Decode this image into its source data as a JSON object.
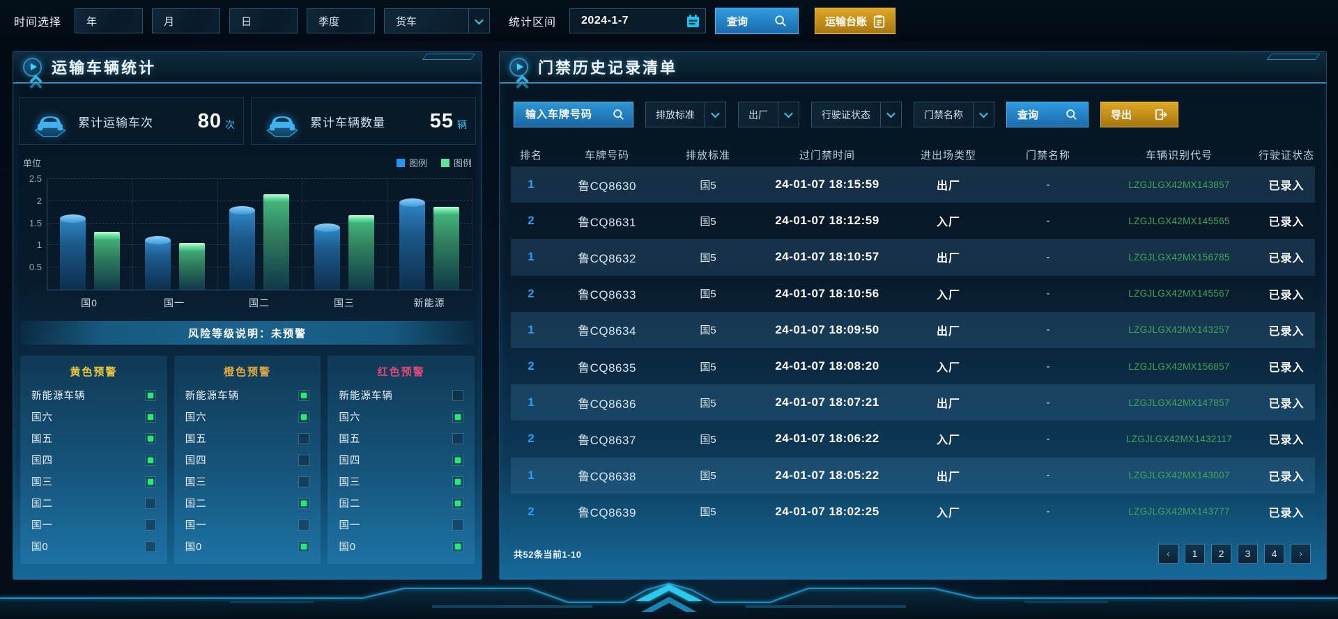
{
  "topbar": {
    "time_label": "时间选择",
    "period_buttons": [
      "年",
      "月",
      "日",
      "季度"
    ],
    "vehicle_type_selected": "货车",
    "range_label": "统计区间",
    "date_value": "2024-1-7",
    "query_label": "查询",
    "ledger_label": "运输台账"
  },
  "left_panel": {
    "title": "运输车辆统计",
    "stats": [
      {
        "label": "累计运输车次",
        "value": "80",
        "unit": "次"
      },
      {
        "label": "累计车辆数量",
        "value": "55",
        "unit": "辆"
      }
    ],
    "risk_banner": "风险等级说明：未预警",
    "warning_columns": [
      {
        "title": "黄色预警",
        "color": "#e8c63e",
        "items": [
          {
            "label": "新能源车辆",
            "checked": true
          },
          {
            "label": "国六",
            "checked": true
          },
          {
            "label": "国五",
            "checked": true
          },
          {
            "label": "国四",
            "checked": true
          },
          {
            "label": "国三",
            "checked": true
          },
          {
            "label": "国二",
            "checked": false
          },
          {
            "label": "国一",
            "checked": false
          },
          {
            "label": "国0",
            "checked": false
          }
        ]
      },
      {
        "title": "橙色预警",
        "color": "#e2a93c",
        "items": [
          {
            "label": "新能源车辆",
            "checked": true
          },
          {
            "label": "国六",
            "checked": true
          },
          {
            "label": "国五",
            "checked": false
          },
          {
            "label": "国四",
            "checked": false
          },
          {
            "label": "国三",
            "checked": false
          },
          {
            "label": "国二",
            "checked": true
          },
          {
            "label": "国一",
            "checked": false
          },
          {
            "label": "国0",
            "checked": true
          }
        ]
      },
      {
        "title": "红色预警",
        "color": "#e04878",
        "items": [
          {
            "label": "新能源车辆",
            "checked": false
          },
          {
            "label": "国六",
            "checked": true
          },
          {
            "label": "国五",
            "checked": false
          },
          {
            "label": "国四",
            "checked": true
          },
          {
            "label": "国三",
            "checked": true
          },
          {
            "label": "国二",
            "checked": true
          },
          {
            "label": "国一",
            "checked": false
          },
          {
            "label": "国0",
            "checked": true
          }
        ]
      }
    ]
  },
  "chart_data": {
    "type": "bar",
    "title": "",
    "unit_label": "单位",
    "categories": [
      "国0",
      "国一",
      "国二",
      "国三",
      "新能源"
    ],
    "series": [
      {
        "name": "图例",
        "color": "#2196f3",
        "values": [
          1.6,
          1.12,
          1.8,
          1.4,
          1.97
        ]
      },
      {
        "name": "图例",
        "color": "#5ce39a",
        "values": [
          1.22,
          0.97,
          2.07,
          1.6,
          1.8
        ]
      }
    ],
    "yticks": [
      "0.5",
      "1",
      "1.5",
      "2",
      "2.5"
    ],
    "ylim": [
      0,
      2.5
    ],
    "grid": true,
    "legend_position": "top-right"
  },
  "right_panel": {
    "title": "门禁历史记录清单",
    "filters": {
      "plate_placeholder": "输入车牌号码",
      "selects": [
        "排放标准",
        "出厂",
        "行驶证状态",
        "门禁名称"
      ],
      "query_label": "查询",
      "export_label": "导出"
    },
    "table": {
      "headers": [
        "排名",
        "车牌号码",
        "排放标准",
        "过门禁时间",
        "进出场类型",
        "门禁名称",
        "车辆识别代号",
        "行驶证状态"
      ],
      "rows": [
        {
          "highlight": true,
          "cells": [
            "1",
            "鲁CQ8630",
            "国5",
            "24-01-07 18:15:59",
            "出厂",
            "-",
            "LZGJLGX42MX143857",
            "已录入"
          ]
        },
        {
          "highlight": false,
          "cells": [
            "2",
            "鲁CQ8631",
            "国5",
            "24-01-07 18:12:59",
            "入厂",
            "-",
            "LZGJLGX42MX145565",
            "已录入"
          ]
        },
        {
          "highlight": true,
          "cells": [
            "1",
            "鲁CQ8632",
            "国5",
            "24-01-07 18:10:57",
            "出厂",
            "-",
            "LZGJLGX42MX156785",
            "已录入"
          ]
        },
        {
          "highlight": false,
          "cells": [
            "2",
            "鲁CQ8633",
            "国5",
            "24-01-07 18:10:56",
            "入厂",
            "-",
            "LZGJLGX42MX145567",
            "已录入"
          ]
        },
        {
          "highlight": true,
          "cells": [
            "1",
            "鲁CQ8634",
            "国5",
            "24-01-07 18:09:50",
            "出厂",
            "-",
            "LZGJLGX42MX143257",
            "已录入"
          ]
        },
        {
          "highlight": false,
          "cells": [
            "2",
            "鲁CQ8635",
            "国5",
            "24-01-07 18:08:20",
            "入厂",
            "-",
            "LZGJLGX42MX156857",
            "已录入"
          ]
        },
        {
          "highlight": true,
          "cells": [
            "1",
            "鲁CQ8636",
            "国5",
            "24-01-07 18:07:21",
            "出厂",
            "-",
            "LZGJLGX42MX147857",
            "已录入"
          ]
        },
        {
          "highlight": false,
          "cells": [
            "2",
            "鲁CQ8637",
            "国5",
            "24-01-07 18:06:22",
            "入厂",
            "-",
            "LZGJLGX42MX1432117",
            "已录入"
          ]
        },
        {
          "highlight": true,
          "cells": [
            "1",
            "鲁CQ8638",
            "国5",
            "24-01-07 18:05:22",
            "出厂",
            "-",
            "LZGJLGX42MX143007",
            "已录入"
          ]
        },
        {
          "highlight": false,
          "cells": [
            "2",
            "鲁CQ8639",
            "国5",
            "24-01-07 18:02:25",
            "入厂",
            "-",
            "LZGJLGX42MX143777",
            "已录入"
          ]
        }
      ]
    },
    "footer": {
      "summary": "共52条当前1-10",
      "prev": "‹",
      "pages": [
        "1",
        "2",
        "3",
        "4"
      ],
      "next": "›"
    }
  },
  "colors": {
    "accent_cyan": "#35c6e8",
    "accent_blue": "#2196f3",
    "button_blue": "#2f9be0",
    "button_gold": "#dfa724",
    "vin_green": "#3fa657",
    "check_green": "#2ee57a",
    "yellow_warning": "#e8c63e",
    "orange_warning": "#e2a93c",
    "red_warning": "#e04878"
  }
}
